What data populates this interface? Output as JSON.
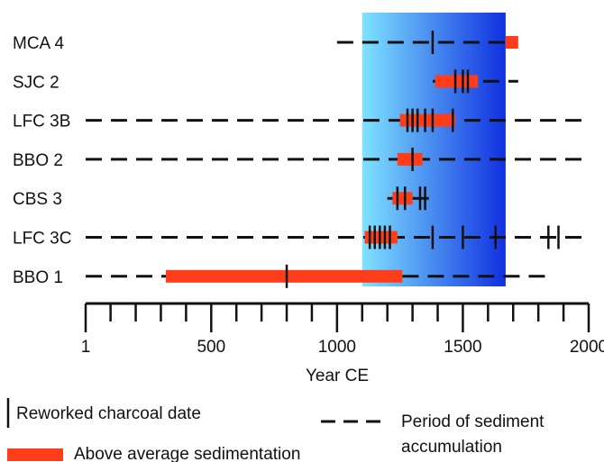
{
  "chart_data": {
    "type": "timeline",
    "title": "",
    "xlabel": "Year CE",
    "ylabel": "",
    "xlim": [
      1,
      2000
    ],
    "x_ticks": [
      1,
      500,
      1000,
      1500,
      2000
    ],
    "x_minor_step": 100,
    "highlight_band": {
      "x_start": 1100,
      "x_end": 1670,
      "color_start": "#7fe3ff",
      "color_end": "#1030e0"
    },
    "colors": {
      "sedimentation": "#ff3d1a",
      "line": "#111111"
    },
    "sites": [
      {
        "label": "MCA 4",
        "accumulation": [
          1000,
          1670
        ],
        "extended_accumulation": [],
        "above_average": [
          [
            1670,
            1720
          ]
        ],
        "charcoal_dates": [
          1380
        ]
      },
      {
        "label": "SJC 2",
        "accumulation": [
          1380,
          1720
        ],
        "extended_accumulation": [],
        "above_average": [
          [
            1390,
            1560
          ]
        ],
        "charcoal_dates": [
          1470,
          1500,
          1520
        ]
      },
      {
        "label": "LFC 3B",
        "accumulation": [
          1,
          2000
        ],
        "extended_accumulation": [],
        "above_average": [
          [
            1250,
            1470
          ]
        ],
        "charcoal_dates": [
          1280,
          1300,
          1320,
          1350,
          1380,
          1460
        ]
      },
      {
        "label": "BBO 2",
        "accumulation": [
          1,
          2000
        ],
        "extended_accumulation": [],
        "above_average": [
          [
            1240,
            1340
          ]
        ],
        "charcoal_dates": [
          1300
        ]
      },
      {
        "label": "CBS 3",
        "accumulation": [
          1200,
          1390
        ],
        "extended_accumulation": [],
        "above_average": [
          [
            1220,
            1300
          ]
        ],
        "charcoal_dates": [
          1240,
          1270,
          1330,
          1350
        ]
      },
      {
        "label": "LFC 3C",
        "accumulation": [
          1,
          2000
        ],
        "extended_accumulation": [],
        "above_average": [
          [
            1110,
            1240
          ]
        ],
        "charcoal_dates": [
          1130,
          1150,
          1170,
          1190,
          1210,
          1380,
          1500,
          1630,
          1840,
          1880
        ]
      },
      {
        "label": "BBO 1",
        "accumulation": [
          1,
          1260
        ],
        "extended_accumulation": [
          1260,
          1850
        ],
        "above_average": [
          [
            320,
            1260
          ]
        ],
        "charcoal_dates": [
          800
        ]
      }
    ]
  },
  "legend": {
    "charcoal_label": "Reworked charcoal date",
    "accumulation_label_line1": "Period of sediment",
    "accumulation_label_line2": "accumulation",
    "sedimentation_label": "Above average sedimentation"
  }
}
